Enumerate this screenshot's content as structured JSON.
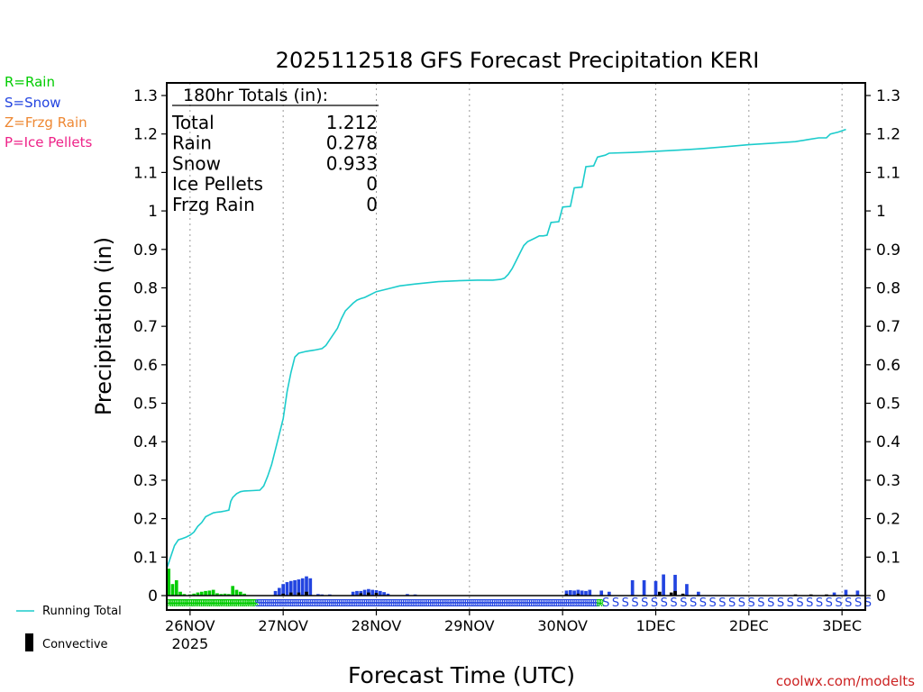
{
  "chart_data": {
    "type": "bar+line",
    "title": "2025112518 GFS Forecast Precipitation KERI",
    "xlabel": "Forecast Time (UTC)",
    "ylabel": "Precipitation (in)",
    "ylim": [
      0,
      1.3
    ],
    "yticks": [
      "0",
      "0.1",
      "0.2",
      "0.3",
      "0.4",
      "0.5",
      "0.6",
      "0.7",
      "0.8",
      "0.9",
      "1",
      "1.1",
      "1.2",
      "1.3"
    ],
    "forecast_hours": 180,
    "x_ticks": [
      {
        "hour": 6,
        "label": "26NOV",
        "sublabel": "2025"
      },
      {
        "hour": 30,
        "label": "27NOV",
        "sublabel": ""
      },
      {
        "hour": 54,
        "label": "28NOV",
        "sublabel": ""
      },
      {
        "hour": 78,
        "label": "29NOV",
        "sublabel": ""
      },
      {
        "hour": 102,
        "label": "30NOV",
        "sublabel": ""
      },
      {
        "hour": 126,
        "label": "1DEC",
        "sublabel": ""
      },
      {
        "hour": 150,
        "label": "2DEC",
        "sublabel": ""
      },
      {
        "hour": 174,
        "label": "3DEC",
        "sublabel": ""
      }
    ],
    "totals_box": {
      "header": "180hr Totals (in):",
      "rows": [
        {
          "label": "Total",
          "value": "1.212"
        },
        {
          "label": "Rain",
          "value": "0.278"
        },
        {
          "label": "Snow",
          "value": "0.933"
        },
        {
          "label": "Ice Pellets",
          "value": "0"
        },
        {
          "label": "Frzg Rain",
          "value": "0"
        }
      ]
    },
    "series": [
      {
        "name": "Running Total",
        "type": "line",
        "color": "#1ccccc",
        "points": [
          [
            0,
            0.07
          ],
          [
            1,
            0.1
          ],
          [
            2,
            0.13
          ],
          [
            3,
            0.145
          ],
          [
            4,
            0.148
          ],
          [
            5,
            0.152
          ],
          [
            6,
            0.157
          ],
          [
            7,
            0.165
          ],
          [
            8,
            0.18
          ],
          [
            9,
            0.19
          ],
          [
            10,
            0.205
          ],
          [
            11,
            0.21
          ],
          [
            12,
            0.215
          ],
          [
            13,
            0.217
          ],
          [
            14,
            0.218
          ],
          [
            15,
            0.22
          ],
          [
            16,
            0.222
          ],
          [
            16.5,
            0.245
          ],
          [
            17,
            0.255
          ],
          [
            18,
            0.265
          ],
          [
            19,
            0.27
          ],
          [
            20,
            0.272
          ],
          [
            22,
            0.273
          ],
          [
            24,
            0.274
          ],
          [
            25,
            0.285
          ],
          [
            26,
            0.31
          ],
          [
            27,
            0.34
          ],
          [
            28,
            0.38
          ],
          [
            29,
            0.42
          ],
          [
            30,
            0.46
          ],
          [
            31,
            0.53
          ],
          [
            32,
            0.58
          ],
          [
            33,
            0.62
          ],
          [
            34,
            0.63
          ],
          [
            36,
            0.635
          ],
          [
            38,
            0.638
          ],
          [
            40,
            0.642
          ],
          [
            41,
            0.65
          ],
          [
            42,
            0.665
          ],
          [
            43,
            0.68
          ],
          [
            44,
            0.695
          ],
          [
            45,
            0.72
          ],
          [
            46,
            0.74
          ],
          [
            47,
            0.75
          ],
          [
            48,
            0.76
          ],
          [
            49,
            0.768
          ],
          [
            50,
            0.772
          ],
          [
            51,
            0.775
          ],
          [
            52,
            0.78
          ],
          [
            54,
            0.79
          ],
          [
            56,
            0.795
          ],
          [
            58,
            0.8
          ],
          [
            60,
            0.805
          ],
          [
            64,
            0.81
          ],
          [
            70,
            0.816
          ],
          [
            76,
            0.819
          ],
          [
            80,
            0.82
          ],
          [
            84,
            0.82
          ],
          [
            86,
            0.822
          ],
          [
            87,
            0.825
          ],
          [
            88,
            0.835
          ],
          [
            89,
            0.85
          ],
          [
            90,
            0.87
          ],
          [
            91,
            0.89
          ],
          [
            92,
            0.91
          ],
          [
            93,
            0.92
          ],
          [
            94,
            0.925
          ],
          [
            95,
            0.93
          ],
          [
            96,
            0.935
          ],
          [
            97,
            0.935
          ],
          [
            98,
            0.937
          ],
          [
            99,
            0.97
          ],
          [
            101,
            0.972
          ],
          [
            102,
            1.01
          ],
          [
            104,
            1.012
          ],
          [
            105,
            1.06
          ],
          [
            107,
            1.062
          ],
          [
            108,
            1.115
          ],
          [
            110,
            1.117
          ],
          [
            111,
            1.14
          ],
          [
            113,
            1.145
          ],
          [
            114,
            1.15
          ],
          [
            120,
            1.152
          ],
          [
            126,
            1.155
          ],
          [
            132,
            1.158
          ],
          [
            138,
            1.162
          ],
          [
            144,
            1.167
          ],
          [
            150,
            1.172
          ],
          [
            156,
            1.176
          ],
          [
            162,
            1.18
          ],
          [
            165,
            1.185
          ],
          [
            168,
            1.19
          ],
          [
            170,
            1.19
          ],
          [
            171,
            1.2
          ],
          [
            173,
            1.205
          ],
          [
            175,
            1.212
          ]
        ]
      },
      {
        "name": "Rain",
        "type": "bar",
        "color": "#00cc00",
        "points": [
          [
            0.5,
            0.07
          ],
          [
            1.5,
            0.03
          ],
          [
            2.5,
            0.04
          ],
          [
            3.5,
            0.01
          ],
          [
            4.5,
            0.004
          ],
          [
            6,
            0.003
          ],
          [
            7,
            0.005
          ],
          [
            8,
            0.008
          ],
          [
            9,
            0.01
          ],
          [
            10,
            0.012
          ],
          [
            11,
            0.013
          ],
          [
            12,
            0.015
          ],
          [
            13,
            0.006
          ],
          [
            14,
            0.004
          ],
          [
            15,
            0.005
          ],
          [
            16,
            0.004
          ],
          [
            17,
            0.025
          ],
          [
            18,
            0.015
          ],
          [
            19,
            0.01
          ],
          [
            20,
            0.005
          ]
        ]
      },
      {
        "name": "Snow",
        "type": "bar",
        "color": "#2244e0",
        "points": [
          [
            28,
            0.012
          ],
          [
            29,
            0.02
          ],
          [
            30,
            0.03
          ],
          [
            31,
            0.035
          ],
          [
            32,
            0.038
          ],
          [
            33,
            0.04
          ],
          [
            34,
            0.042
          ],
          [
            35,
            0.045
          ],
          [
            36,
            0.05
          ],
          [
            37,
            0.045
          ],
          [
            39,
            0.004
          ],
          [
            40,
            0.003
          ],
          [
            42,
            0.003
          ],
          [
            48,
            0.01
          ],
          [
            49,
            0.012
          ],
          [
            50,
            0.012
          ],
          [
            51,
            0.015
          ],
          [
            52,
            0.017
          ],
          [
            53,
            0.015
          ],
          [
            54,
            0.014
          ],
          [
            55,
            0.012
          ],
          [
            56,
            0.009
          ],
          [
            57,
            0.005
          ],
          [
            62,
            0.004
          ],
          [
            64,
            0.003
          ],
          [
            103,
            0.013
          ],
          [
            104,
            0.014
          ],
          [
            105,
            0.013
          ],
          [
            106,
            0.015
          ],
          [
            107,
            0.013
          ],
          [
            108,
            0.012
          ],
          [
            109,
            0.015
          ],
          [
            112,
            0.013
          ],
          [
            114,
            0.01
          ],
          [
            120,
            0.04
          ],
          [
            123,
            0.04
          ],
          [
            126,
            0.038
          ],
          [
            128,
            0.055
          ],
          [
            131,
            0.054
          ],
          [
            134,
            0.03
          ],
          [
            137,
            0.01
          ],
          [
            172,
            0.008
          ],
          [
            175,
            0.015
          ],
          [
            178,
            0.013
          ]
        ]
      },
      {
        "name": "Convective",
        "type": "bar",
        "color": "#000000",
        "points": [
          [
            30,
            0.005
          ],
          [
            32,
            0.008
          ],
          [
            34,
            0.008
          ],
          [
            36,
            0.01
          ],
          [
            50,
            0.006
          ],
          [
            52,
            0.008
          ],
          [
            54,
            0.007
          ],
          [
            103,
            0.004
          ],
          [
            106,
            0.005
          ],
          [
            127,
            0.01
          ],
          [
            130,
            0.008
          ],
          [
            131,
            0.012
          ],
          [
            133,
            0.005
          ],
          [
            162,
            0.003
          ],
          [
            166,
            0.003
          ],
          [
            170,
            0.003
          ]
        ]
      }
    ],
    "ptype_strip": [
      {
        "from": 0,
        "to": 23,
        "code": "R",
        "color": "#00cc00"
      },
      {
        "from": 23,
        "to": 111,
        "code": "S",
        "color": "#2244e0"
      },
      {
        "from": 111,
        "to": 112,
        "code": "R",
        "color": "#00cc00"
      },
      {
        "from": 112,
        "to": 180,
        "code": "S",
        "color": "#2244e0"
      }
    ]
  },
  "legend_ptype": [
    {
      "text": "R=Rain",
      "color": "#00cc00"
    },
    {
      "text": "S=Snow",
      "color": "#2244e0"
    },
    {
      "text": "Z=Frzg Rain",
      "color": "#ee8833"
    },
    {
      "text": "P=Ice Pellets",
      "color": "#ee2288"
    }
  ],
  "legend_bottom": {
    "running_total": "Running Total",
    "convective": "Convective"
  },
  "credit": "coolwx.com/modelts"
}
